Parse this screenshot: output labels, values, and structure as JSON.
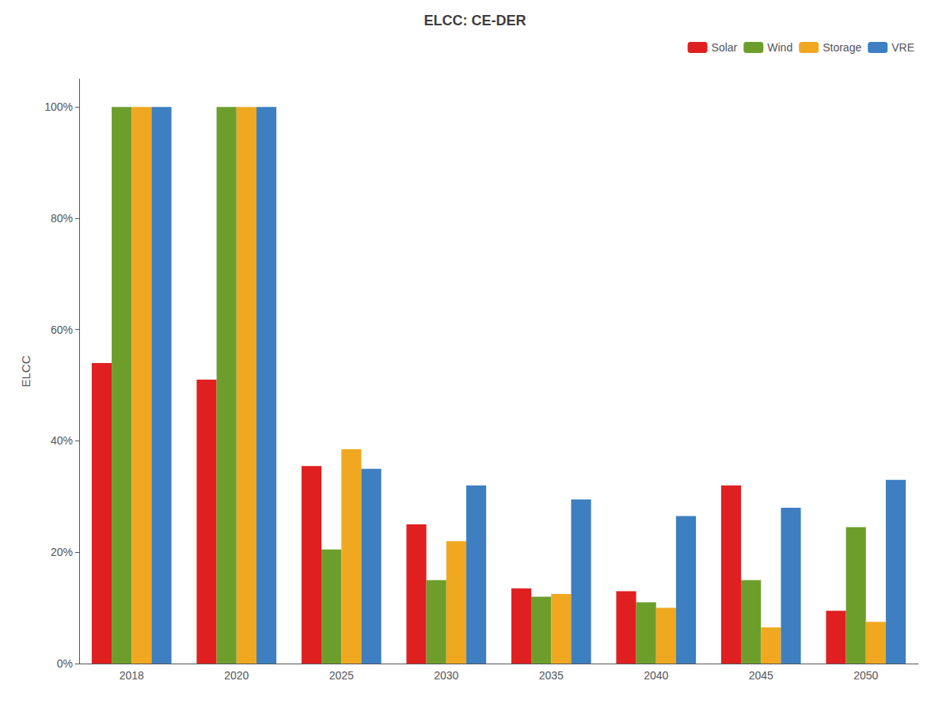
{
  "chart_data": {
    "type": "bar",
    "title": "ELCC: CE-DER",
    "ylabel": "ELCC",
    "categories": [
      "2018",
      "2020",
      "2025",
      "2030",
      "2035",
      "2040",
      "2045",
      "2050"
    ],
    "series": [
      {
        "name": "Solar",
        "color": "#e02020",
        "values": [
          0.54,
          0.51,
          0.355,
          0.25,
          0.135,
          0.13,
          0.32,
          0.095
        ]
      },
      {
        "name": "Wind",
        "color": "#6d9e2c",
        "values": [
          1.0,
          1.0,
          0.205,
          0.15,
          0.12,
          0.11,
          0.15,
          0.245
        ]
      },
      {
        "name": "Storage",
        "color": "#f0a820",
        "values": [
          1.0,
          1.0,
          0.385,
          0.22,
          0.125,
          0.1,
          0.065,
          0.075
        ]
      },
      {
        "name": "VRE",
        "color": "#3d7fc0",
        "values": [
          1.0,
          1.0,
          0.35,
          0.32,
          0.295,
          0.265,
          0.28,
          0.33
        ]
      }
    ],
    "ylim": [
      0,
      1.05
    ],
    "yticks": [
      {
        "value": 0.0,
        "label": "0%"
      },
      {
        "value": 0.2,
        "label": "20%"
      },
      {
        "value": 0.4,
        "label": "40%"
      },
      {
        "value": 0.6,
        "label": "60%"
      },
      {
        "value": 0.8,
        "label": "80%"
      },
      {
        "value": 1.0,
        "label": "100%"
      }
    ],
    "grid": false,
    "legend": "upper right"
  }
}
